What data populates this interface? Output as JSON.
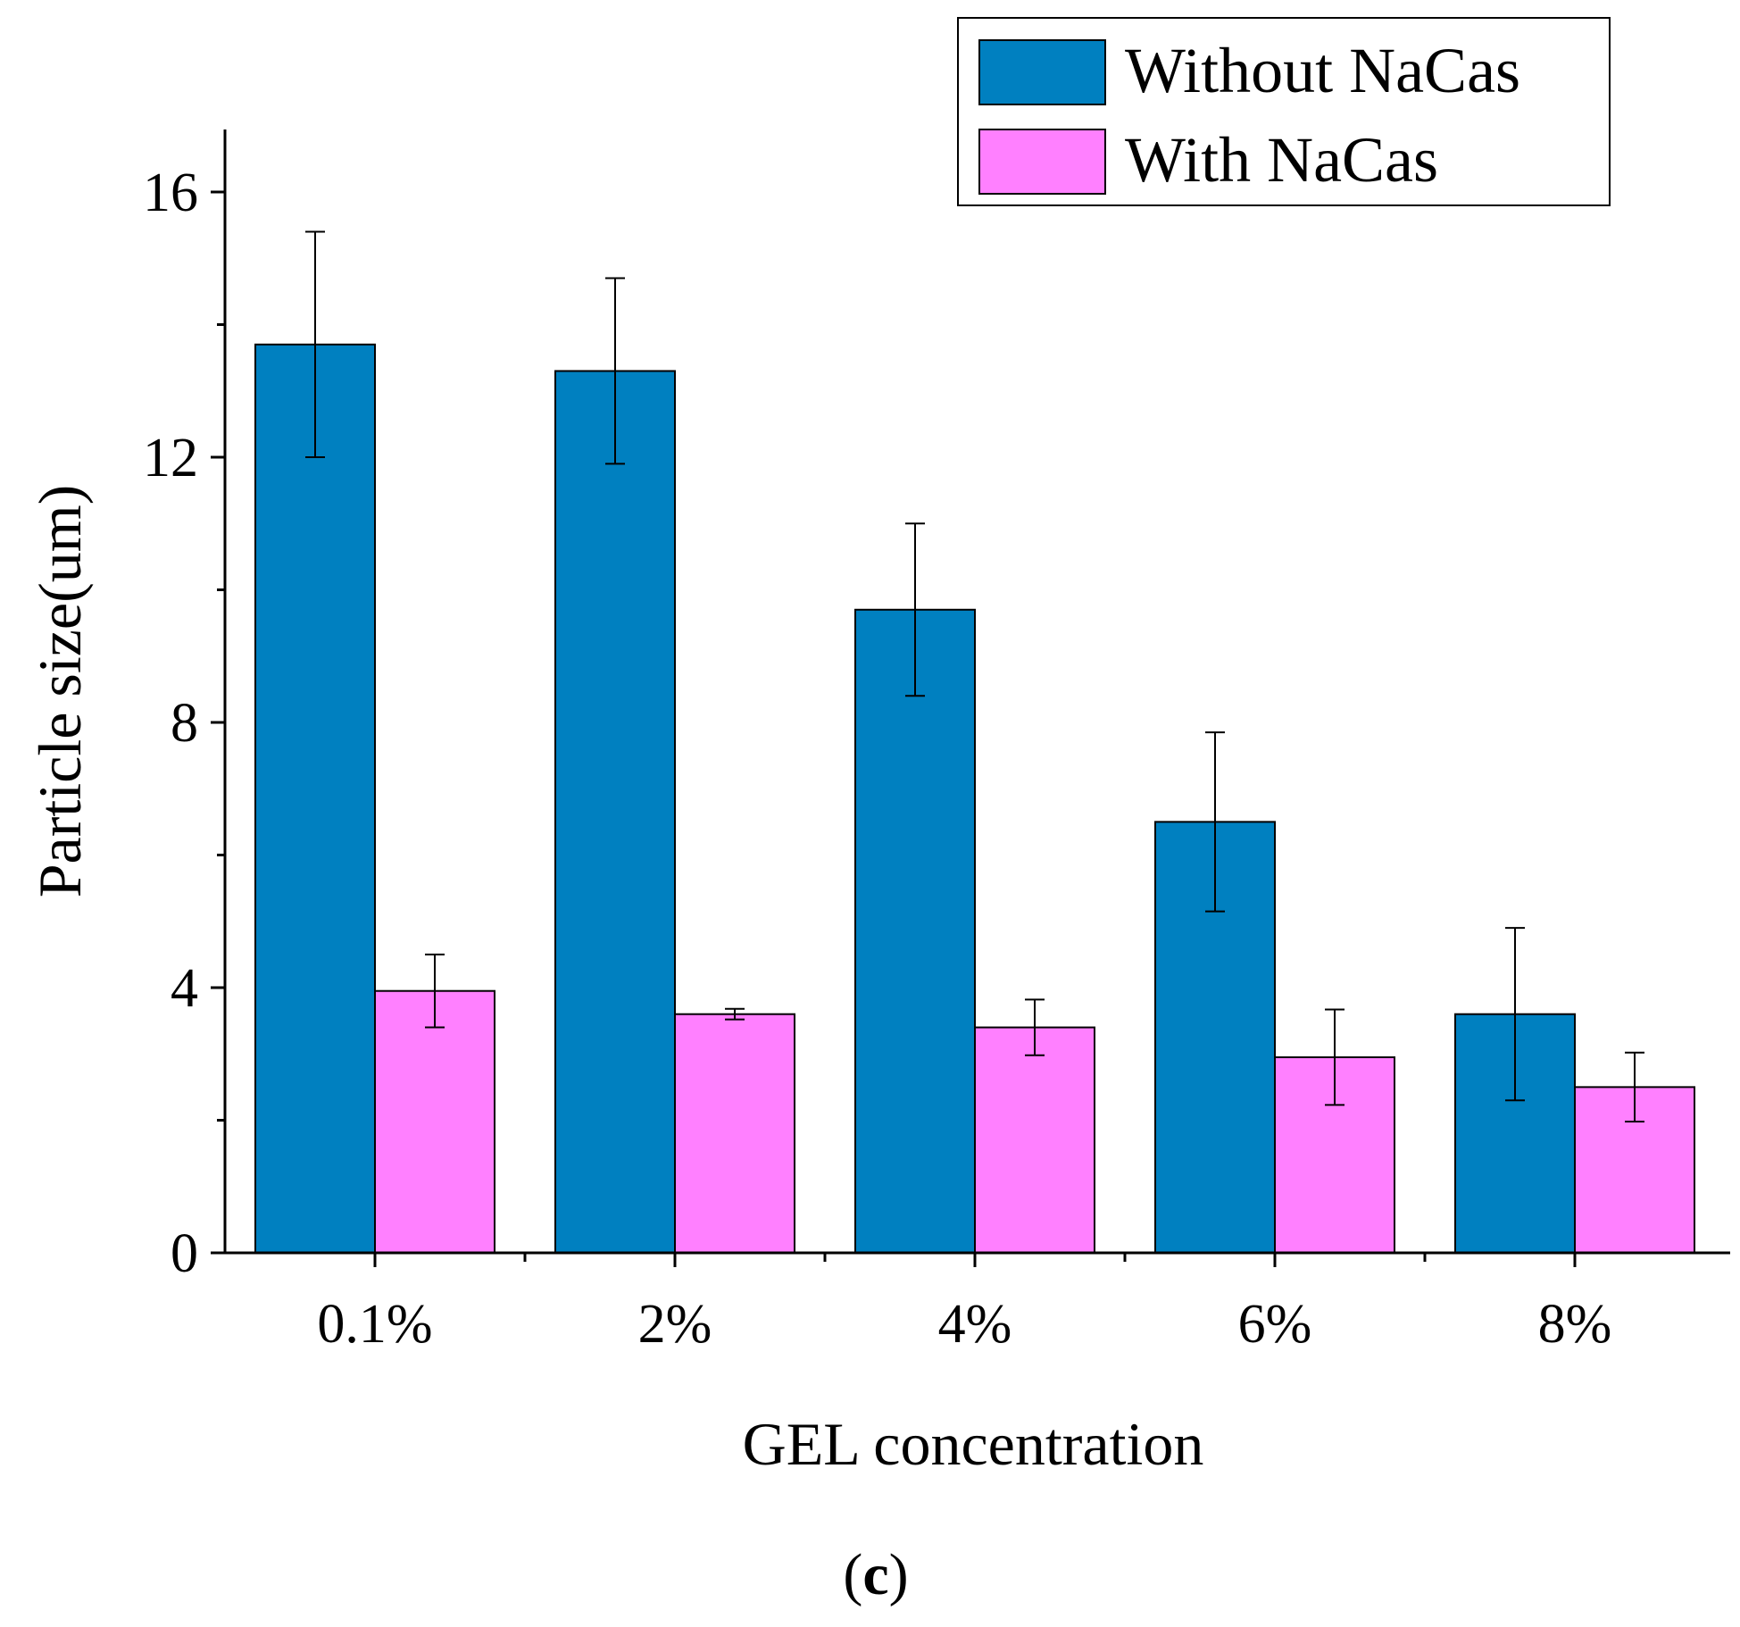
{
  "chart_data": {
    "type": "bar",
    "title": "",
    "xlabel": "GEL concentration",
    "ylabel": "Particle size(um)",
    "panel_label_open": "(",
    "panel_label_letter": "c",
    "panel_label_close": ")",
    "categories": [
      "0.1%",
      "2%",
      "4%",
      "6%",
      "8%"
    ],
    "ylim": [
      0,
      17
    ],
    "yticks": [
      0,
      4,
      8,
      12,
      16
    ],
    "ytick_labels": [
      "0",
      "4",
      "8",
      "12",
      "16"
    ],
    "legend_position": "top-right",
    "series": [
      {
        "name": "Without NaCas",
        "color": "#0080C0",
        "values": [
          13.7,
          13.3,
          9.7,
          6.5,
          3.6
        ],
        "errors": [
          1.7,
          1.4,
          1.3,
          1.35,
          1.3
        ]
      },
      {
        "name": "With NaCas",
        "color": "#FF80FF",
        "values": [
          3.95,
          3.6,
          3.4,
          2.95,
          2.5
        ],
        "errors": [
          0.55,
          0.08,
          0.42,
          0.72,
          0.52
        ]
      }
    ]
  }
}
